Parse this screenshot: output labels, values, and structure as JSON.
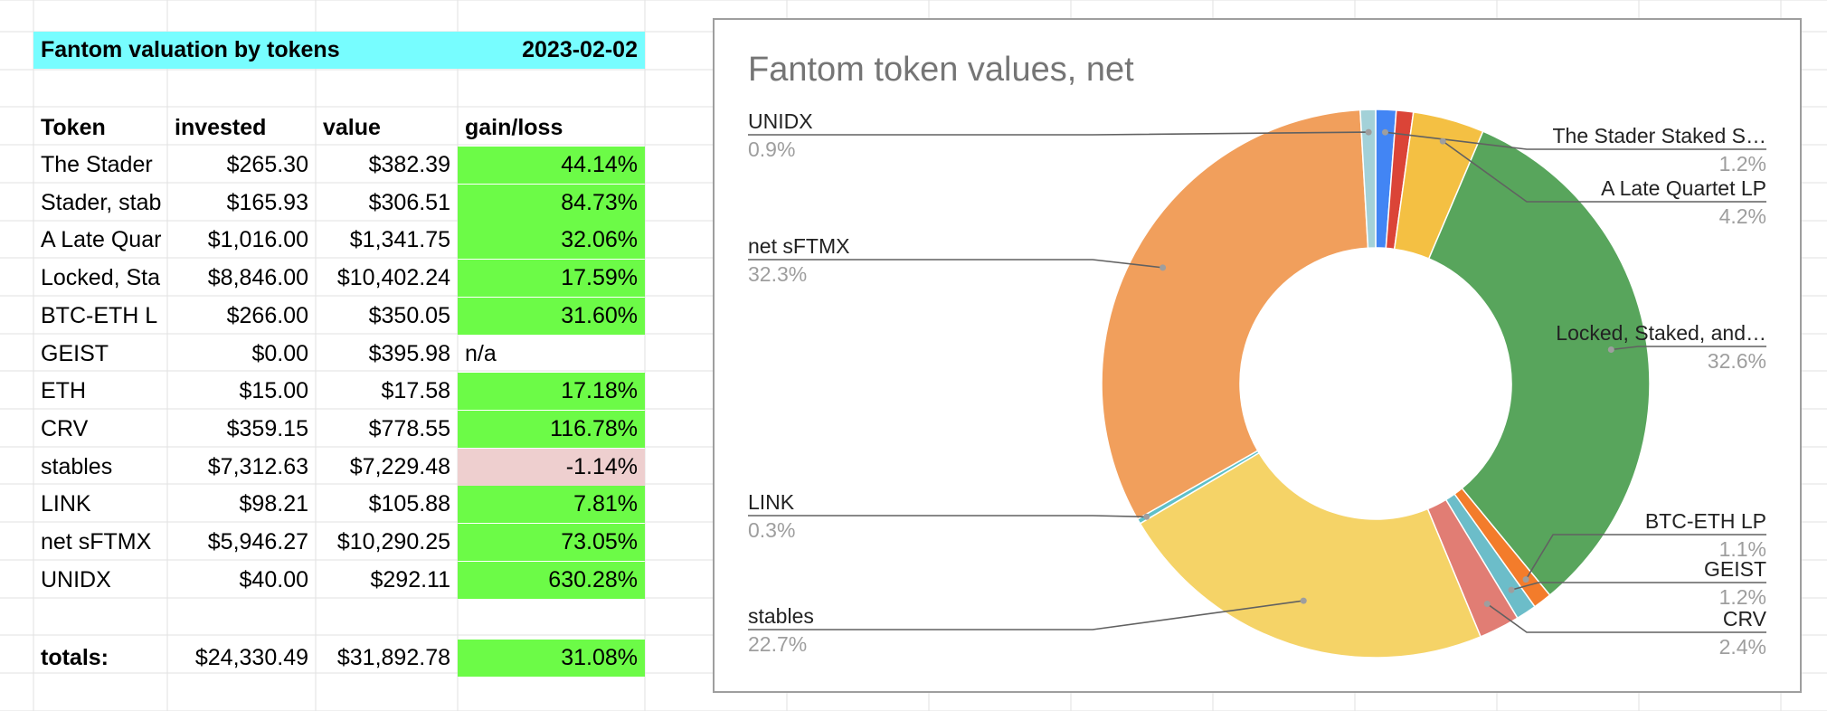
{
  "colors": {
    "header_cyan": "#77fdff",
    "gain_green": "#6cfb47",
    "loss_pink": "#eecfcf",
    "grid_line": "#e2e2e2"
  },
  "sheet": {
    "title": "Fantom valuation by tokens",
    "date": "2023-02-02",
    "columns": [
      "Token",
      "invested",
      "value",
      "gain/loss"
    ],
    "rows": [
      {
        "token": "The Stader",
        "invested": "$265.30",
        "value": "$382.39",
        "gain": "44.14%",
        "status": "gain"
      },
      {
        "token": "Stader, stab",
        "invested": "$165.93",
        "value": "$306.51",
        "gain": "84.73%",
        "status": "gain"
      },
      {
        "token": "A Late Quar",
        "invested": "$1,016.00",
        "value": "$1,341.75",
        "gain": "32.06%",
        "status": "gain"
      },
      {
        "token": "Locked, Sta",
        "invested": "$8,846.00",
        "value": "$10,402.24",
        "gain": "17.59%",
        "status": "gain"
      },
      {
        "token": "BTC-ETH L",
        "invested": "$266.00",
        "value": "$350.05",
        "gain": "31.60%",
        "status": "gain"
      },
      {
        "token": "GEIST",
        "invested": "$0.00",
        "value": "$395.98",
        "gain": "n/a",
        "status": "none"
      },
      {
        "token": "ETH",
        "invested": "$15.00",
        "value": "$17.58",
        "gain": "17.18%",
        "status": "gain"
      },
      {
        "token": "CRV",
        "invested": "$359.15",
        "value": "$778.55",
        "gain": "116.78%",
        "status": "gain"
      },
      {
        "token": "stables",
        "invested": "$7,312.63",
        "value": "$7,229.48",
        "gain": "-1.14%",
        "status": "loss"
      },
      {
        "token": "LINK",
        "invested": "$98.21",
        "value": "$105.88",
        "gain": "7.81%",
        "status": "gain"
      },
      {
        "token": "net sFTMX",
        "invested": "$5,946.27",
        "value": "$10,290.25",
        "gain": "73.05%",
        "status": "gain"
      },
      {
        "token": "UNIDX",
        "invested": "$40.00",
        "value": "$292.11",
        "gain": "630.28%",
        "status": "gain"
      }
    ],
    "totals": {
      "label": "totals:",
      "invested": "$24,330.49",
      "value": "$31,892.78",
      "gain": "31.08%"
    }
  },
  "chart_data": {
    "type": "pie",
    "donut": true,
    "title": "Fantom token values, net",
    "slices": [
      {
        "label": "The Stader Staked S…",
        "pct_label": "1.2%",
        "value": 1.2,
        "color": "#4285f4"
      },
      {
        "label": "",
        "pct_label": "",
        "value": 1.0,
        "color": "#db4437"
      },
      {
        "label": "A Late Quartet LP",
        "pct_label": "4.2%",
        "value": 4.2,
        "color": "#f4c043"
      },
      {
        "label": "Locked, Staked, and…",
        "pct_label": "32.6%",
        "value": 32.6,
        "color": "#58a55c"
      },
      {
        "label": "BTC-ETH LP",
        "pct_label": "1.1%",
        "value": 1.1,
        "color": "#f37c2b"
      },
      {
        "label": "GEIST",
        "pct_label": "1.2%",
        "value": 1.2,
        "color": "#6cbdc9"
      },
      {
        "label": "CRV",
        "pct_label": "2.4%",
        "value": 2.4,
        "color": "#e17d74"
      },
      {
        "label": "stables",
        "pct_label": "22.7%",
        "value": 22.7,
        "color": "#f5d367"
      },
      {
        "label": "LINK",
        "pct_label": "0.3%",
        "value": 0.3,
        "color": "#5fc0c9"
      },
      {
        "label": "net sFTMX",
        "pct_label": "32.3%",
        "value": 32.3,
        "color": "#f19f5c"
      },
      {
        "label": "UNIDX",
        "pct_label": "0.9%",
        "value": 0.9,
        "color": "#a3d1d8"
      }
    ]
  }
}
